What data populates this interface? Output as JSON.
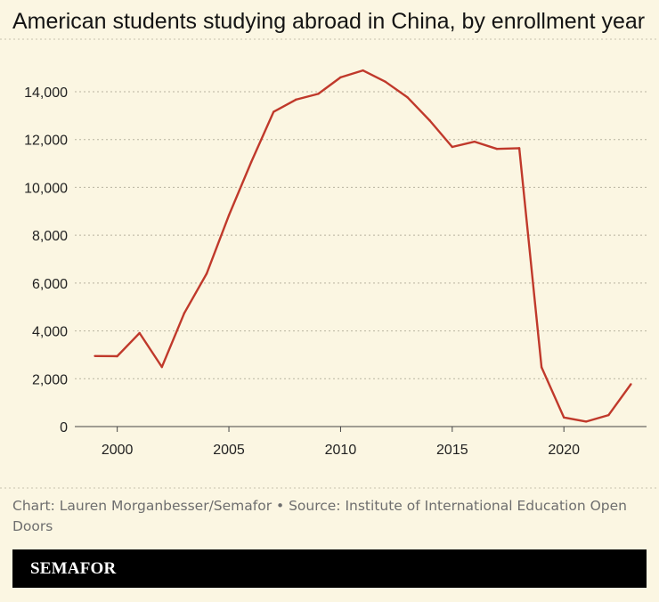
{
  "brand": {
    "name": "SEMAFOR"
  },
  "chart_data": {
    "type": "line",
    "title": "American students studying abroad in China, by enrollment year",
    "caption": "Chart: Lauren Morganbesser/Semafor • Source: Institute of International Education Open Doors",
    "xlabel": "",
    "ylabel": "",
    "xlim": [
      1998.1,
      2023.7
    ],
    "ylim": [
      0,
      14000
    ],
    "xticks": [
      2000,
      2005,
      2010,
      2015,
      2020
    ],
    "xtick_labels": [
      "2000",
      "2005",
      "2010",
      "2015",
      "2020"
    ],
    "yticks": [
      0,
      2000,
      4000,
      6000,
      8000,
      10000,
      12000,
      14000
    ],
    "ytick_labels": [
      "0",
      "2,000",
      "4,000",
      "6,000",
      "8,000",
      "10,000",
      "12,000",
      "14,000"
    ],
    "grid": true,
    "line_color": "#c0392b",
    "series": [
      {
        "x": [
          1999,
          2000,
          2001,
          2002,
          2003,
          2004,
          2005,
          2006,
          2007,
          2008,
          2009,
          2010,
          2011,
          2012,
          2013,
          2014,
          2015,
          2016,
          2017,
          2018,
          2019,
          2020,
          2021,
          2022,
          2023
        ],
        "values": [
          2950,
          2940,
          3910,
          2490,
          4740,
          6390,
          8830,
          11060,
          13160,
          13670,
          13910,
          14600,
          14890,
          14420,
          13760,
          12790,
          11690,
          11910,
          11610,
          11640,
          2480,
          380,
          210,
          480,
          1770
        ]
      }
    ]
  }
}
